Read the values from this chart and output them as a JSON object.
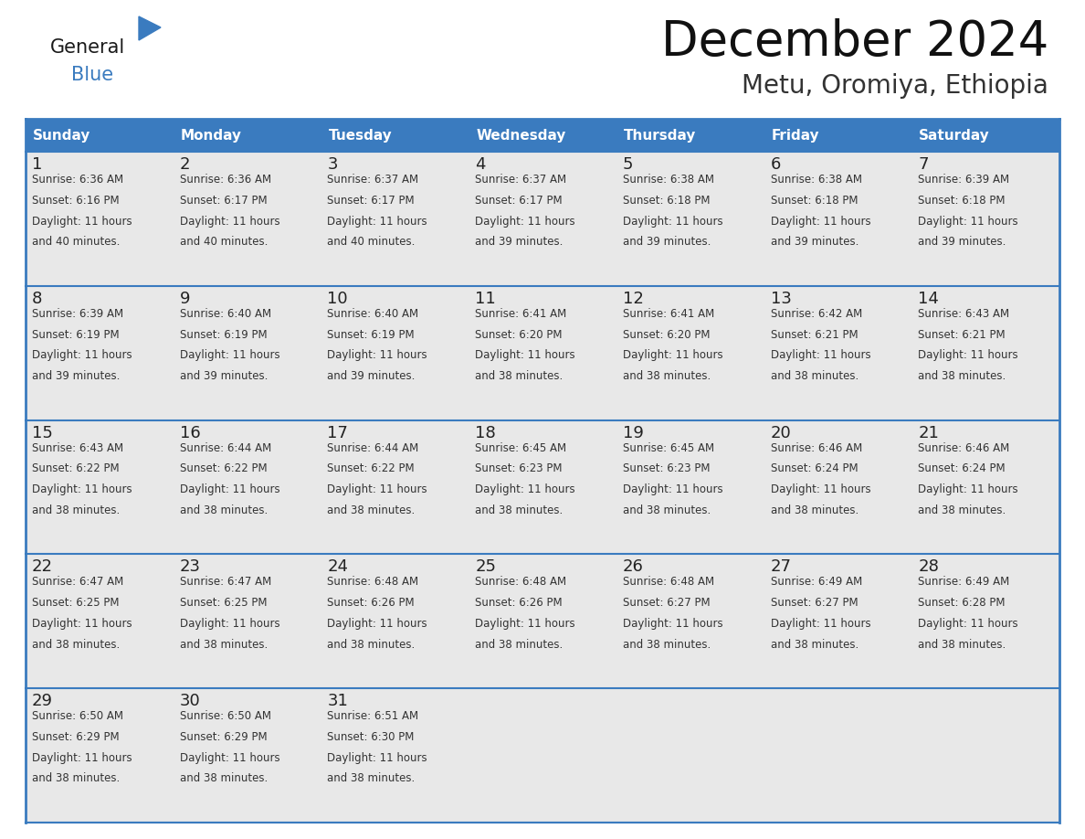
{
  "title": "December 2024",
  "subtitle": "Metu, Oromiya, Ethiopia",
  "header_bg_color": "#3a7bbf",
  "header_text_color": "#ffffff",
  "cell_bg_color": "#e8e8e8",
  "border_color": "#3a7bbf",
  "day_number_color": "#222222",
  "text_color": "#333333",
  "days_of_week": [
    "Sunday",
    "Monday",
    "Tuesday",
    "Wednesday",
    "Thursday",
    "Friday",
    "Saturday"
  ],
  "weeks": [
    [
      {
        "day": "1",
        "sunrise": "6:36 AM",
        "sunset": "6:16 PM",
        "daylight": "11 hours\nand 40 minutes."
      },
      {
        "day": "2",
        "sunrise": "6:36 AM",
        "sunset": "6:17 PM",
        "daylight": "11 hours\nand 40 minutes."
      },
      {
        "day": "3",
        "sunrise": "6:37 AM",
        "sunset": "6:17 PM",
        "daylight": "11 hours\nand 40 minutes."
      },
      {
        "day": "4",
        "sunrise": "6:37 AM",
        "sunset": "6:17 PM",
        "daylight": "11 hours\nand 39 minutes."
      },
      {
        "day": "5",
        "sunrise": "6:38 AM",
        "sunset": "6:18 PM",
        "daylight": "11 hours\nand 39 minutes."
      },
      {
        "day": "6",
        "sunrise": "6:38 AM",
        "sunset": "6:18 PM",
        "daylight": "11 hours\nand 39 minutes."
      },
      {
        "day": "7",
        "sunrise": "6:39 AM",
        "sunset": "6:18 PM",
        "daylight": "11 hours\nand 39 minutes."
      }
    ],
    [
      {
        "day": "8",
        "sunrise": "6:39 AM",
        "sunset": "6:19 PM",
        "daylight": "11 hours\nand 39 minutes."
      },
      {
        "day": "9",
        "sunrise": "6:40 AM",
        "sunset": "6:19 PM",
        "daylight": "11 hours\nand 39 minutes."
      },
      {
        "day": "10",
        "sunrise": "6:40 AM",
        "sunset": "6:19 PM",
        "daylight": "11 hours\nand 39 minutes."
      },
      {
        "day": "11",
        "sunrise": "6:41 AM",
        "sunset": "6:20 PM",
        "daylight": "11 hours\nand 38 minutes."
      },
      {
        "day": "12",
        "sunrise": "6:41 AM",
        "sunset": "6:20 PM",
        "daylight": "11 hours\nand 38 minutes."
      },
      {
        "day": "13",
        "sunrise": "6:42 AM",
        "sunset": "6:21 PM",
        "daylight": "11 hours\nand 38 minutes."
      },
      {
        "day": "14",
        "sunrise": "6:43 AM",
        "sunset": "6:21 PM",
        "daylight": "11 hours\nand 38 minutes."
      }
    ],
    [
      {
        "day": "15",
        "sunrise": "6:43 AM",
        "sunset": "6:22 PM",
        "daylight": "11 hours\nand 38 minutes."
      },
      {
        "day": "16",
        "sunrise": "6:44 AM",
        "sunset": "6:22 PM",
        "daylight": "11 hours\nand 38 minutes."
      },
      {
        "day": "17",
        "sunrise": "6:44 AM",
        "sunset": "6:22 PM",
        "daylight": "11 hours\nand 38 minutes."
      },
      {
        "day": "18",
        "sunrise": "6:45 AM",
        "sunset": "6:23 PM",
        "daylight": "11 hours\nand 38 minutes."
      },
      {
        "day": "19",
        "sunrise": "6:45 AM",
        "sunset": "6:23 PM",
        "daylight": "11 hours\nand 38 minutes."
      },
      {
        "day": "20",
        "sunrise": "6:46 AM",
        "sunset": "6:24 PM",
        "daylight": "11 hours\nand 38 minutes."
      },
      {
        "day": "21",
        "sunrise": "6:46 AM",
        "sunset": "6:24 PM",
        "daylight": "11 hours\nand 38 minutes."
      }
    ],
    [
      {
        "day": "22",
        "sunrise": "6:47 AM",
        "sunset": "6:25 PM",
        "daylight": "11 hours\nand 38 minutes."
      },
      {
        "day": "23",
        "sunrise": "6:47 AM",
        "sunset": "6:25 PM",
        "daylight": "11 hours\nand 38 minutes."
      },
      {
        "day": "24",
        "sunrise": "6:48 AM",
        "sunset": "6:26 PM",
        "daylight": "11 hours\nand 38 minutes."
      },
      {
        "day": "25",
        "sunrise": "6:48 AM",
        "sunset": "6:26 PM",
        "daylight": "11 hours\nand 38 minutes."
      },
      {
        "day": "26",
        "sunrise": "6:48 AM",
        "sunset": "6:27 PM",
        "daylight": "11 hours\nand 38 minutes."
      },
      {
        "day": "27",
        "sunrise": "6:49 AM",
        "sunset": "6:27 PM",
        "daylight": "11 hours\nand 38 minutes."
      },
      {
        "day": "28",
        "sunrise": "6:49 AM",
        "sunset": "6:28 PM",
        "daylight": "11 hours\nand 38 minutes."
      }
    ],
    [
      {
        "day": "29",
        "sunrise": "6:50 AM",
        "sunset": "6:29 PM",
        "daylight": "11 hours\nand 38 minutes."
      },
      {
        "day": "30",
        "sunrise": "6:50 AM",
        "sunset": "6:29 PM",
        "daylight": "11 hours\nand 38 minutes."
      },
      {
        "day": "31",
        "sunrise": "6:51 AM",
        "sunset": "6:30 PM",
        "daylight": "11 hours\nand 38 minutes."
      },
      null,
      null,
      null,
      null
    ]
  ]
}
